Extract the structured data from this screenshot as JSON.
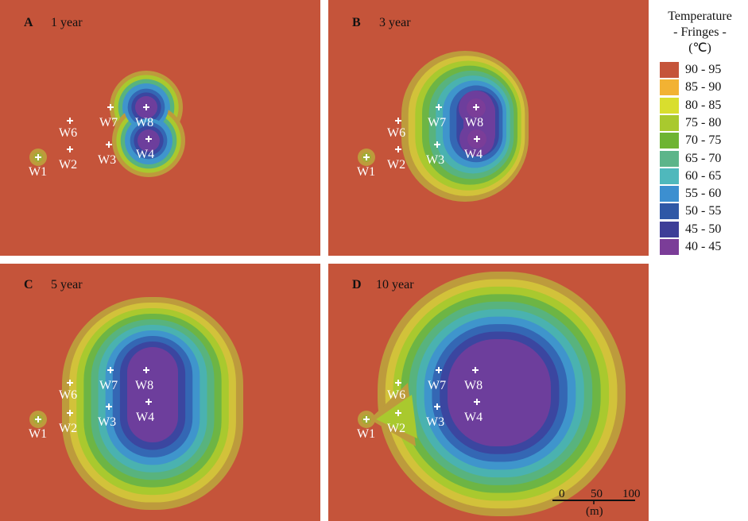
{
  "panels": [
    {
      "letter": "A",
      "label": "1 year"
    },
    {
      "letter": "B",
      "label": "3 year"
    },
    {
      "letter": "C",
      "label": "5 year"
    },
    {
      "letter": "D",
      "label": "10 year"
    }
  ],
  "wells": [
    "W1",
    "W2",
    "W3",
    "W4",
    "W6",
    "W7",
    "W8"
  ],
  "legend": {
    "title_lines": [
      "Temperature",
      "- Fringes -",
      "(℃)"
    ],
    "items": [
      {
        "label": "90 - 95",
        "color": "#C5543A"
      },
      {
        "label": "85 - 90",
        "color": "#F2B233"
      },
      {
        "label": "80 - 85",
        "color": "#D9DE2E"
      },
      {
        "label": "75 - 80",
        "color": "#A9C92E"
      },
      {
        "label": "70 - 75",
        "color": "#6EB432"
      },
      {
        "label": "65 - 70",
        "color": "#5DB58A"
      },
      {
        "label": "60 - 65",
        "color": "#4FB8BC"
      },
      {
        "label": "55 - 60",
        "color": "#3C8FD0"
      },
      {
        "label": "50 - 55",
        "color": "#2F58A6"
      },
      {
        "label": "45 - 50",
        "color": "#3E3E97"
      },
      {
        "label": "40 - 45",
        "color": "#7B3D98"
      }
    ]
  },
  "scale_bar": {
    "ticks": [
      "0",
      "50",
      "100"
    ],
    "unit": "(m)"
  },
  "colors": {
    "background": "#C5543A",
    "outer_fringe": "#BD9B3C",
    "fringe_sequence": [
      "#A3AC35",
      "#8DB83A",
      "#6DB544",
      "#58B37E",
      "#4AB2B0",
      "#3F95CC",
      "#3467B4",
      "#3B46A0",
      "#6D3E9C"
    ]
  }
}
